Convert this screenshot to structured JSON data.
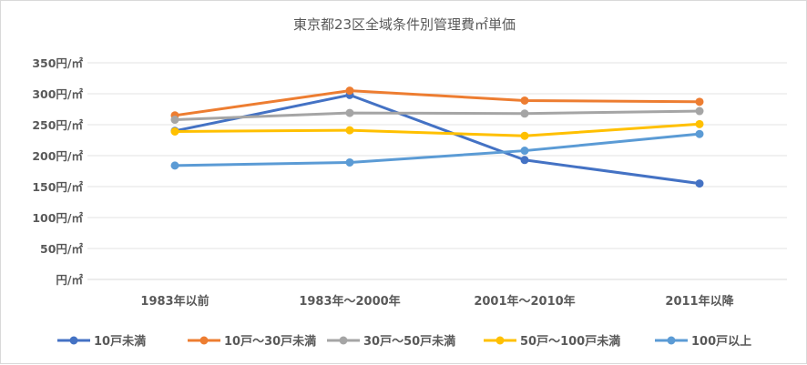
{
  "chart_data": {
    "type": "line",
    "title": "東京都23区全域条件別管理費㎡単価",
    "categories": [
      "1983年以前",
      "1983年～2000年",
      "2001年～2010年",
      "2011年以降"
    ],
    "y_ticks": [
      "350円/㎡",
      "300円/㎡",
      "250円/㎡",
      "200円/㎡",
      "150円/㎡",
      "100円/㎡",
      "50円/㎡",
      "円/㎡"
    ],
    "ylim": [
      0,
      350
    ],
    "grid": true,
    "legend_position": "bottom",
    "series": [
      {
        "name": "10戸未満",
        "color": "#4472C4",
        "values": [
          240,
          298,
          193,
          155
        ]
      },
      {
        "name": "10戸～30戸未満",
        "color": "#ED7D31",
        "values": [
          265,
          305,
          289,
          287
        ]
      },
      {
        "name": "30戸～50戸未満",
        "color": "#A5A5A5",
        "values": [
          258,
          269,
          268,
          272
        ]
      },
      {
        "name": "50戸～100戸未満",
        "color": "#FFC000",
        "values": [
          239,
          241,
          232,
          251
        ]
      },
      {
        "name": "100戸以上",
        "color": "#5B9BD5",
        "values": [
          184,
          189,
          208,
          235
        ]
      }
    ]
  }
}
